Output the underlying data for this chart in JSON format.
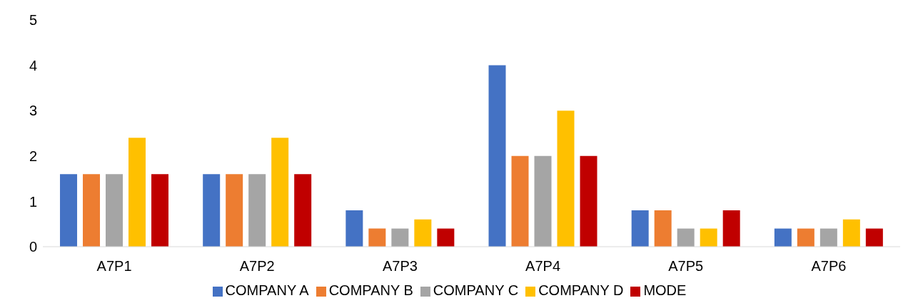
{
  "chart_data": {
    "type": "bar",
    "categories": [
      "A7P1",
      "A7P2",
      "A7P3",
      "A7P4",
      "A7P5",
      "A7P6"
    ],
    "series": [
      {
        "name": "COMPANY A",
        "color": "#4472c4",
        "values": [
          1.6,
          1.6,
          0.8,
          4,
          0.8,
          0.4
        ]
      },
      {
        "name": "COMPANY B",
        "color": "#ed7d31",
        "values": [
          1.6,
          1.6,
          0.4,
          2,
          0.8,
          0.4
        ]
      },
      {
        "name": "COMPANY C",
        "color": "#a5a5a5",
        "values": [
          1.6,
          1.6,
          0.4,
          2,
          0.4,
          0.4
        ]
      },
      {
        "name": "COMPANY D",
        "color": "#ffc000",
        "values": [
          2.4,
          2.4,
          0.6,
          3,
          0.4,
          0.6
        ]
      },
      {
        "name": "MODE",
        "color": "#c00000",
        "values": [
          1.6,
          1.6,
          0.4,
          2,
          0.8,
          0.4
        ]
      }
    ],
    "ylim": [
      0,
      5
    ],
    "yticks": [
      0,
      1,
      2,
      3,
      4,
      5
    ],
    "grid": false,
    "legend": "bottom"
  }
}
